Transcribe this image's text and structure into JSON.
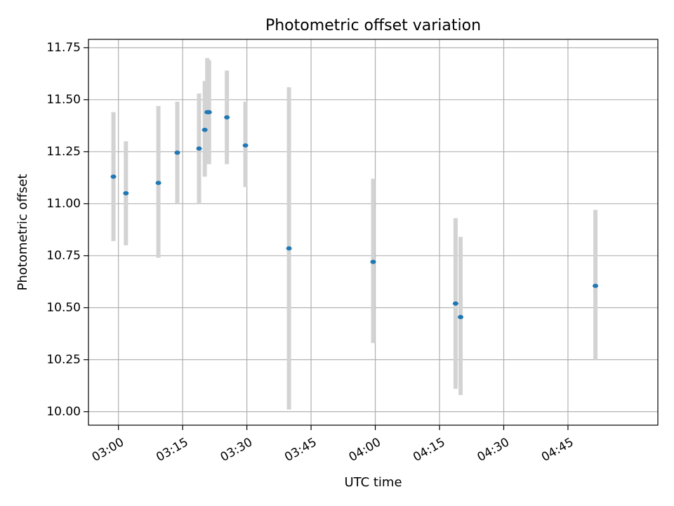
{
  "chart_data": {
    "type": "scatter",
    "title": "Photometric offset variation",
    "xlabel": "UTC time",
    "ylabel": "Photometric offset",
    "xlim": [
      "02:53",
      "05:06"
    ],
    "ylim": [
      9.935,
      11.79
    ],
    "grid": true,
    "x_ticks": [
      "03:00",
      "03:15",
      "03:30",
      "03:45",
      "04:00",
      "04:15",
      "04:30",
      "04:45"
    ],
    "y_ticks": [
      "10.00",
      "10.25",
      "10.50",
      "10.75",
      "11.00",
      "11.25",
      "11.50",
      "11.75"
    ],
    "series": [
      {
        "colors": {
          "marker": "#1f77b4",
          "error_bar": "#d3d3d3"
        },
        "points": [
          {
            "x": "02:58:50",
            "y": 11.13,
            "err_low": 10.82,
            "err_high": 11.44
          },
          {
            "x": "03:01:45",
            "y": 11.05,
            "err_low": 10.8,
            "err_high": 11.3
          },
          {
            "x": "03:09:20",
            "y": 11.1,
            "err_low": 10.74,
            "err_high": 11.47
          },
          {
            "x": "03:13:45",
            "y": 11.245,
            "err_low": 11.0,
            "err_high": 11.49
          },
          {
            "x": "03:18:50",
            "y": 11.265,
            "err_low": 11.0,
            "err_high": 11.53
          },
          {
            "x": "03:20:10",
            "y": 11.355,
            "err_low": 11.13,
            "err_high": 11.59
          },
          {
            "x": "03:20:45",
            "y": 11.44,
            "err_low": 11.19,
            "err_high": 11.7
          },
          {
            "x": "03:21:10",
            "y": 11.44,
            "err_low": 11.19,
            "err_high": 11.69
          },
          {
            "x": "03:25:20",
            "y": 11.415,
            "err_low": 11.19,
            "err_high": 11.64
          },
          {
            "x": "03:29:40",
            "y": 11.28,
            "err_low": 11.08,
            "err_high": 11.49
          },
          {
            "x": "03:39:50",
            "y": 10.785,
            "err_low": 10.01,
            "err_high": 11.56
          },
          {
            "x": "03:59:30",
            "y": 10.72,
            "err_low": 10.33,
            "err_high": 11.12
          },
          {
            "x": "04:18:45",
            "y": 10.52,
            "err_low": 10.11,
            "err_high": 10.93
          },
          {
            "x": "04:19:55",
            "y": 10.455,
            "err_low": 10.08,
            "err_high": 10.84
          },
          {
            "x": "04:51:25",
            "y": 10.605,
            "err_low": 10.25,
            "err_high": 10.97
          }
        ]
      }
    ]
  }
}
